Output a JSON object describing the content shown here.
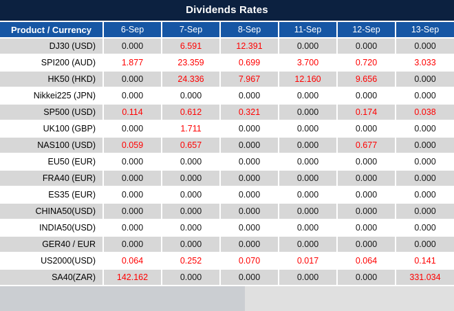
{
  "chart_data": {
    "type": "table",
    "title": "Dividends Rates",
    "columns": [
      "Product / Currency",
      "6-Sep",
      "7-Sep",
      "8-Sep",
      "11-Sep",
      "12-Sep",
      "13-Sep"
    ],
    "rows": [
      {
        "product": "DJ30 (USD)",
        "cells": [
          {
            "v": "0.000",
            "red": false
          },
          {
            "v": "6.591",
            "red": true
          },
          {
            "v": "12.391",
            "red": true
          },
          {
            "v": "0.000",
            "red": false
          },
          {
            "v": "0.000",
            "red": false
          },
          {
            "v": "0.000",
            "red": false
          }
        ]
      },
      {
        "product": "SPI200 (AUD)",
        "cells": [
          {
            "v": "1.877",
            "red": true
          },
          {
            "v": "23.359",
            "red": true
          },
          {
            "v": "0.699",
            "red": true
          },
          {
            "v": "3.700",
            "red": true
          },
          {
            "v": "0.720",
            "red": true
          },
          {
            "v": "3.033",
            "red": true
          }
        ]
      },
      {
        "product": "HK50 (HKD)",
        "cells": [
          {
            "v": "0.000",
            "red": false
          },
          {
            "v": "24.336",
            "red": true
          },
          {
            "v": "7.967",
            "red": true
          },
          {
            "v": "12.160",
            "red": true
          },
          {
            "v": "9.656",
            "red": true
          },
          {
            "v": "0.000",
            "red": false
          }
        ]
      },
      {
        "product": "Nikkei225 (JPN)",
        "cells": [
          {
            "v": "0.000",
            "red": false
          },
          {
            "v": "0.000",
            "red": false
          },
          {
            "v": "0.000",
            "red": false
          },
          {
            "v": "0.000",
            "red": false
          },
          {
            "v": "0.000",
            "red": false
          },
          {
            "v": "0.000",
            "red": false
          }
        ]
      },
      {
        "product": "SP500 (USD)",
        "cells": [
          {
            "v": "0.114",
            "red": true
          },
          {
            "v": "0.612",
            "red": true
          },
          {
            "v": "0.321",
            "red": true
          },
          {
            "v": "0.000",
            "red": false
          },
          {
            "v": "0.174",
            "red": true
          },
          {
            "v": "0.038",
            "red": true
          }
        ]
      },
      {
        "product": "UK100 (GBP)",
        "cells": [
          {
            "v": "0.000",
            "red": false
          },
          {
            "v": "1.711",
            "red": true
          },
          {
            "v": "0.000",
            "red": false
          },
          {
            "v": "0.000",
            "red": false
          },
          {
            "v": "0.000",
            "red": false
          },
          {
            "v": "0.000",
            "red": false
          }
        ]
      },
      {
        "product": "NAS100 (USD)",
        "cells": [
          {
            "v": "0.059",
            "red": true
          },
          {
            "v": "0.657",
            "red": true
          },
          {
            "v": "0.000",
            "red": false
          },
          {
            "v": "0.000",
            "red": false
          },
          {
            "v": "0.677",
            "red": true
          },
          {
            "v": "0.000",
            "red": false
          }
        ]
      },
      {
        "product": "EU50 (EUR)",
        "cells": [
          {
            "v": "0.000",
            "red": false
          },
          {
            "v": "0.000",
            "red": false
          },
          {
            "v": "0.000",
            "red": false
          },
          {
            "v": "0.000",
            "red": false
          },
          {
            "v": "0.000",
            "red": false
          },
          {
            "v": "0.000",
            "red": false
          }
        ]
      },
      {
        "product": "FRA40 (EUR)",
        "cells": [
          {
            "v": "0.000",
            "red": false
          },
          {
            "v": "0.000",
            "red": false
          },
          {
            "v": "0.000",
            "red": false
          },
          {
            "v": "0.000",
            "red": false
          },
          {
            "v": "0.000",
            "red": false
          },
          {
            "v": "0.000",
            "red": false
          }
        ]
      },
      {
        "product": "ES35 (EUR)",
        "cells": [
          {
            "v": "0.000",
            "red": false
          },
          {
            "v": "0.000",
            "red": false
          },
          {
            "v": "0.000",
            "red": false
          },
          {
            "v": "0.000",
            "red": false
          },
          {
            "v": "0.000",
            "red": false
          },
          {
            "v": "0.000",
            "red": false
          }
        ]
      },
      {
        "product": "CHINA50(USD)",
        "cells": [
          {
            "v": "0.000",
            "red": false
          },
          {
            "v": "0.000",
            "red": false
          },
          {
            "v": "0.000",
            "red": false
          },
          {
            "v": "0.000",
            "red": false
          },
          {
            "v": "0.000",
            "red": false
          },
          {
            "v": "0.000",
            "red": false
          }
        ]
      },
      {
        "product": "INDIA50(USD)",
        "cells": [
          {
            "v": "0.000",
            "red": false
          },
          {
            "v": "0.000",
            "red": false
          },
          {
            "v": "0.000",
            "red": false
          },
          {
            "v": "0.000",
            "red": false
          },
          {
            "v": "0.000",
            "red": false
          },
          {
            "v": "0.000",
            "red": false
          }
        ]
      },
      {
        "product": "GER40 / EUR",
        "cells": [
          {
            "v": "0.000",
            "red": false
          },
          {
            "v": "0.000",
            "red": false
          },
          {
            "v": "0.000",
            "red": false
          },
          {
            "v": "0.000",
            "red": false
          },
          {
            "v": "0.000",
            "red": false
          },
          {
            "v": "0.000",
            "red": false
          }
        ]
      },
      {
        "product": "US2000(USD)",
        "cells": [
          {
            "v": "0.064",
            "red": true
          },
          {
            "v": "0.252",
            "red": true
          },
          {
            "v": "0.070",
            "red": true
          },
          {
            "v": "0.017",
            "red": true
          },
          {
            "v": "0.064",
            "red": true
          },
          {
            "v": "0.141",
            "red": true
          }
        ]
      },
      {
        "product": "SA40(ZAR)",
        "cells": [
          {
            "v": "142.162",
            "red": true
          },
          {
            "v": "0.000",
            "red": false
          },
          {
            "v": "0.000",
            "red": false
          },
          {
            "v": "0.000",
            "red": false
          },
          {
            "v": "0.000",
            "red": false
          },
          {
            "v": "331.034",
            "red": true
          }
        ]
      }
    ],
    "colors": {
      "title_bg": "#0c2140",
      "header_bg": "#1656a4",
      "row_alt_bg": "#d7d7d7",
      "row_bg": "#ffffff",
      "value_black": "#141414",
      "value_red": "#ff0000",
      "header_text": "#ffffff"
    },
    "layout": {
      "grid": "white 2px cell separators",
      "zebra_striping": true
    }
  }
}
